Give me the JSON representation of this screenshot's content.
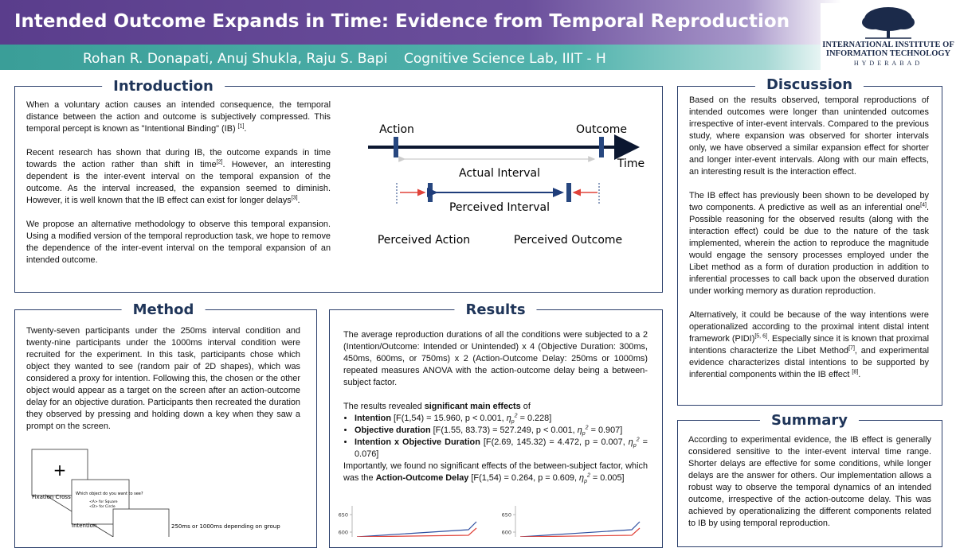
{
  "header": {
    "title": "Intended Outcome Expands in Time: Evidence from Temporal Reproduction",
    "authors": "Rohan R. Donapati, Anuj Shukla, Raju S. Bapi",
    "lab": "Cognitive Science Lab, IIIT - H",
    "logo": {
      "line1": "INTERNATIONAL INSTITUTE OF",
      "line2": "INFORMATION TECHNOLOGY",
      "line3": "HYDERABAD"
    }
  },
  "introduction": {
    "title": "Introduction",
    "paragraphs": [
      [
        "When a voluntary action causes an intended consequence, the temporal distance between the action and outcome is subjectively compressed. This temporal percept is known as \"Intentional Binding\" (IB) ",
        {
          "sup": "[1]"
        },
        "."
      ],
      [
        "Recent research has shown that during IB, the outcome expands in time towards the action rather than shift in time",
        {
          "sup": "[2]"
        },
        ". However, an interesting dependent is the inter-event interval on the temporal expansion of the outcome. As the interval increased, the expansion seemed to diminish. However, it is well known that the IB effect can exist for longer delays",
        {
          "sup": "[3]"
        },
        "."
      ],
      [
        "We propose an alternative methodology to observe this temporal expansion. Using a modified version of the temporal reproduction task, we hope to remove the dependence of the inter-event interval on the temporal expansion of an intended outcome."
      ]
    ],
    "diagram": {
      "action": "Action",
      "outcome": "Outcome",
      "time": "Time",
      "actual": "Actual Interval",
      "perceived": "Perceived Interval",
      "perceived_action": "Perceived Action",
      "perceived_outcome": "Perceived Outcome"
    }
  },
  "method": {
    "title": "Method",
    "paragraphs": [
      [
        "Twenty-seven participants under the 250ms interval condition and twenty-nine participants under the 1000ms interval condition were recruited for the experiment. In this task, participants chose which object they wanted to see (random pair of 2D shapes), which was considered a proxy for intention. Following this, the chosen or the other object would appear as a target on the screen after an action-outcome delay for an objective duration. Participants then recreated the duration they observed by pressing and holding down a key when they saw a prompt on the screen."
      ]
    ],
    "figure": {
      "cross": "+",
      "fixation": "Fixation Cross",
      "question": "Which object do you want to see?",
      "option_a": "<A> for Square",
      "option_d": "<D> for Circle",
      "intention": "Intention",
      "delay": "250ms or 1000ms depending on group"
    }
  },
  "results": {
    "title": "Results",
    "paragraphs_before": [
      [
        "The average reproduction durations of all the conditions were subjected to a 2 (Intention/Outcome: Intended or Unintended) x 4 (Objective Duration: 300ms, 450ms, 600ms, or 750ms) x 2 (Action-Outcome Delay: 250ms or 1000ms) repeated measures ANOVA with the action-outcome delay being a between-subject factor."
      ],
      [
        "The results revealed ",
        {
          "b": "significant main effects"
        },
        " of"
      ]
    ],
    "bullets": [
      [
        {
          "b": "Intention"
        },
        " [F(1,54) = 15.960, p < 0.001, ",
        {
          "eta": "η",
          "sub": "p",
          "sup": "2"
        },
        " = 0.228]"
      ],
      [
        {
          "b": "Objective duration"
        },
        " [F(1.55, 83.73) = 527.249, p < 0.001, ",
        {
          "eta": "η",
          "sub": "p",
          "sup": "2"
        },
        " = 0.907]"
      ],
      [
        {
          "b": "Intention x Objective Duration"
        },
        " [F(2.69, 145.32) = 4.472, p = 0.007, ",
        {
          "eta": "η",
          "sub": "p",
          "sup": "2"
        },
        " = 0.076]"
      ]
    ],
    "paragraphs_after": [
      [
        "Importantly, we found no significant effects of the between-subject factor, which was the ",
        {
          "b": "Action-Outcome Delay"
        },
        " [F(1,54) = 0.264, p = 0.609, ",
        {
          "eta": "η",
          "sub": "p",
          "sup": "2"
        },
        " = 0.005]"
      ]
    ],
    "charts": [
      {
        "yticks": [
          600,
          650
        ]
      },
      {
        "yticks": [
          600,
          650
        ]
      }
    ]
  },
  "discussion": {
    "title": "Discussion",
    "paragraphs": [
      [
        "Based on the results observed, temporal reproductions of intended outcomes were longer than unintended outcomes irrespective of inter-event intervals. Compared to the previous study, where expansion was observed for shorter intervals only, we have observed a similar expansion effect for shorter and longer inter-event intervals. Along with our main effects, an interesting result is the interaction effect."
      ],
      [
        "The IB effect has previously been shown to be developed by two components. A predictive as well as an inferential one",
        {
          "sup": "[4]"
        },
        ". Possible reasoning for the observed results (along with the interaction effect) could be due to the nature of the task implemented, wherein the action to reproduce the magnitude would engage the sensory processes employed under the Libet method as a form of duration production in addition to inferential processes to call back upon the observed duration under working memory as duration reproduction."
      ],
      [
        "Alternatively, it could be because of the way intentions were operationalized according to the proximal intent distal intent framework (PIDI)",
        {
          "sup": "[5, 6]"
        },
        ". Especially since it is known that proximal intentions characterize the Libet Method",
        {
          "sup": "[7]"
        },
        ", and experimental evidence characterizes distal intentions to be supported by inferential components within the IB effect ",
        {
          "sup": "[8]"
        },
        "."
      ]
    ]
  },
  "summary": {
    "title": "Summary",
    "paragraphs": [
      [
        "According to experimental evidence, the IB effect is generally considered sensitive to the inter-event interval time range. Shorter delays are effective for some conditions, while longer delays are the answer for others. Our implementation allows a robust way to observe the temporal dynamics of an intended outcome, irrespective of the action-outcome delay. This was achieved by operationalizing the different components related to IB by using temporal reproduction."
      ]
    ]
  }
}
